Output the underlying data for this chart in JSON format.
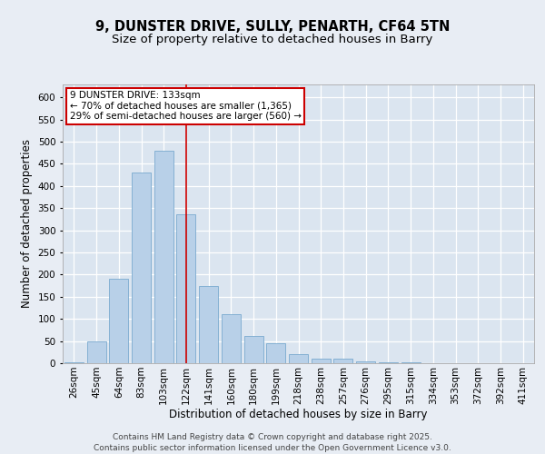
{
  "title": "9, DUNSTER DRIVE, SULLY, PENARTH, CF64 5TN",
  "subtitle": "Size of property relative to detached houses in Barry",
  "xlabel": "Distribution of detached houses by size in Barry",
  "ylabel": "Number of detached properties",
  "categories": [
    "26sqm",
    "45sqm",
    "64sqm",
    "83sqm",
    "103sqm",
    "122sqm",
    "141sqm",
    "160sqm",
    "180sqm",
    "199sqm",
    "218sqm",
    "238sqm",
    "257sqm",
    "276sqm",
    "295sqm",
    "315sqm",
    "334sqm",
    "353sqm",
    "372sqm",
    "392sqm",
    "411sqm"
  ],
  "values": [
    3,
    50,
    190,
    430,
    480,
    335,
    175,
    110,
    62,
    45,
    20,
    10,
    10,
    5,
    3,
    2,
    1,
    1,
    0,
    1,
    1
  ],
  "bar_color": "#b8d0e8",
  "bar_edge_color": "#7aaacf",
  "vline_index": 5,
  "vline_color": "#cc0000",
  "annotation_lines": [
    "9 DUNSTER DRIVE: 133sqm",
    "← 70% of detached houses are smaller (1,365)",
    "29% of semi-detached houses are larger (560) →"
  ],
  "annotation_box_color": "#ffffff",
  "annotation_box_edge": "#cc0000",
  "bg_color": "#e8edf4",
  "plot_bg_color": "#dbe5f0",
  "grid_color": "#ffffff",
  "ylim": [
    0,
    630
  ],
  "yticks": [
    0,
    50,
    100,
    150,
    200,
    250,
    300,
    350,
    400,
    450,
    500,
    550,
    600
  ],
  "footer": "Contains HM Land Registry data © Crown copyright and database right 2025.\nContains public sector information licensed under the Open Government Licence v3.0.",
  "title_fontsize": 10.5,
  "subtitle_fontsize": 9.5,
  "axis_label_fontsize": 8.5,
  "tick_fontsize": 7.5,
  "annotation_fontsize": 7.5,
  "footer_fontsize": 6.5
}
